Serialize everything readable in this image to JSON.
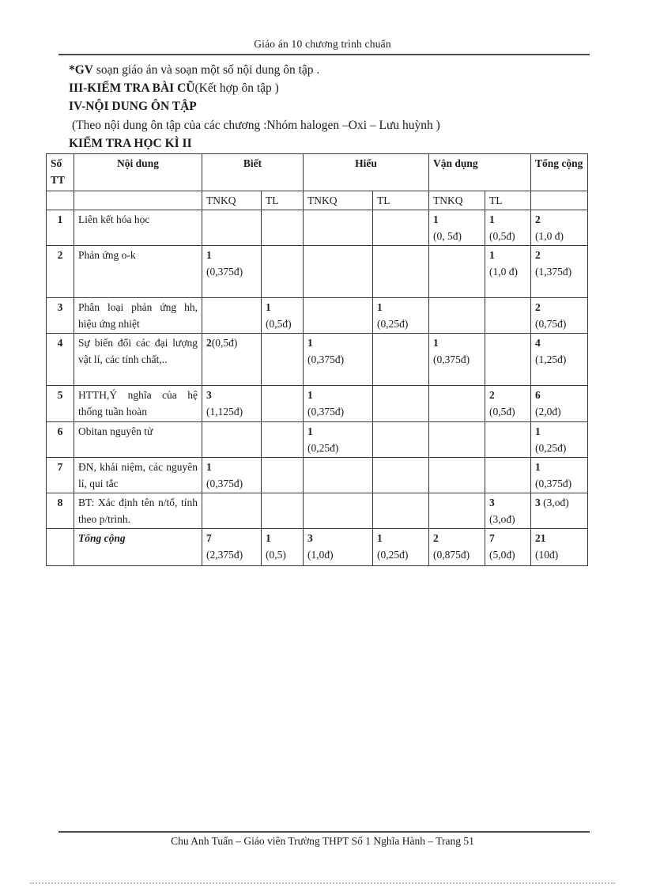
{
  "page": {
    "header_title": "Giáo án 10 chương trình chuẩn",
    "footer_text": "Chu Anh Tuấn – Giáo viên Trường THPT Số 1 Nghĩa Hành – Trang 51"
  },
  "intro": {
    "gv_note_bold": "*GV",
    "gv_note_rest": " soạn giáo án và soạn  một số nội dung ôn tập .",
    "section_iii_bold": "III-KIỂM TRA BÀI CŨ",
    "section_iii_rest": "(Kết hợp ôn tập )",
    "section_iv": "IV-NỘI DUNG ÔN TẬP",
    "scope_note": "(Theo nội dung ôn tập của các chương :Nhóm halogen –Oxi – Lưu huỳnh )",
    "exam_heading": "KIỂM TRA HỌC KÌ II"
  },
  "table": {
    "header": {
      "stt": "Số TT",
      "noi_dung": "Nội dung",
      "biet": "Biết",
      "hieu": "Hiểu",
      "van_dung": "Vận dụng",
      "tong_cong": "Tổng cộng",
      "tnkq": "TNKQ",
      "tl": "TL"
    },
    "col_keys": [
      "biet-tnkq",
      "biet-tl",
      "hieu-tnkq",
      "hieu-tl",
      "vandung-tnkq",
      "vandung-tl",
      "tong-cong"
    ],
    "rows": [
      {
        "stt": "1",
        "content": "Liên kết hóa học",
        "cells": [
          null,
          null,
          null,
          null,
          {
            "n": "1",
            "p": "(0, 5đ)"
          },
          {
            "n": "1",
            "p": "(0,5đ)"
          },
          {
            "n": "2",
            "p": "(1,0 đ)"
          }
        ]
      },
      {
        "stt": "2",
        "content": "Phản ứng o-k",
        "cells": [
          {
            "n": "1",
            "p": "(0,375đ)"
          },
          null,
          null,
          null,
          null,
          {
            "n": "1",
            "p": "(1,0 đ)"
          },
          {
            "n": "2",
            "p": "(1,375đ)"
          }
        ]
      },
      {
        "stt": "3",
        "content": "Phân loại phản ứng hh, hiệu ứng nhiệt",
        "cells": [
          null,
          {
            "n": "1",
            "p": "(0,5đ)"
          },
          null,
          {
            "n": "1",
            "p": "(0,25đ)"
          },
          null,
          null,
          {
            "n": "2",
            "p": "(0,75đ)"
          }
        ]
      },
      {
        "stt": "4",
        "content": "Sự biến đổi các đại lượng vật lí, các tính chất,..",
        "cells": [
          {
            "n": "2",
            "p": "(0,5đ)",
            "inline": true
          },
          null,
          {
            "n": "1",
            "p": "(0,375đ)"
          },
          null,
          {
            "n": "1",
            "p": "(0,375đ)"
          },
          null,
          {
            "n": "4",
            "p": "(1,25đ)"
          }
        ]
      },
      {
        "stt": "5",
        "content": "HTTH,Ý nghĩa của hệ thống tuần hoàn",
        "cells": [
          {
            "n": "3",
            "p": "(1,125đ)"
          },
          null,
          {
            "n": "1",
            "p": "(0,375đ)"
          },
          null,
          null,
          {
            "n": "2",
            "p": "(0,5đ)"
          },
          {
            "n": "6",
            "p": "(2,0đ)"
          }
        ]
      },
      {
        "stt": "6",
        "content": "Obitan nguyên tử",
        "cells": [
          null,
          null,
          {
            "n": "1",
            "p": "(0,25đ)"
          },
          null,
          null,
          null,
          {
            "n": "1",
            "p": "(0,25đ)"
          }
        ]
      },
      {
        "stt": "7",
        "content": "ĐN, khái niệm, các nguyên lí, qui tắc",
        "cells": [
          {
            "n": "1",
            "p": "(0,375đ)"
          },
          null,
          null,
          null,
          null,
          null,
          {
            "n": "1",
            "p": "(0,375đ)"
          }
        ]
      },
      {
        "stt": "8",
        "content": "BT: Xác định tên n/tố, tính theo p/trình.",
        "cells": [
          null,
          null,
          null,
          null,
          null,
          {
            "n": "3",
            "p": "(3,ođ)"
          },
          {
            "n": "3",
            "p": " (3,ođ)",
            "inline": true
          }
        ]
      },
      {
        "stt": "",
        "content": "Tổng cộng",
        "is_total": true,
        "cells": [
          {
            "n": "7",
            "p": "(2,375đ)"
          },
          {
            "n": "1",
            "p": "(0,5)"
          },
          {
            "n": "3",
            "p": "(1,0đ)"
          },
          {
            "n": "1",
            "p": "(0,25đ)"
          },
          {
            "n": "2",
            "p": "(0,875đ)"
          },
          {
            "n": "7",
            "p": "(5,0đ)"
          },
          {
            "n": "21",
            "p": "(10đ)"
          }
        ]
      }
    ]
  }
}
